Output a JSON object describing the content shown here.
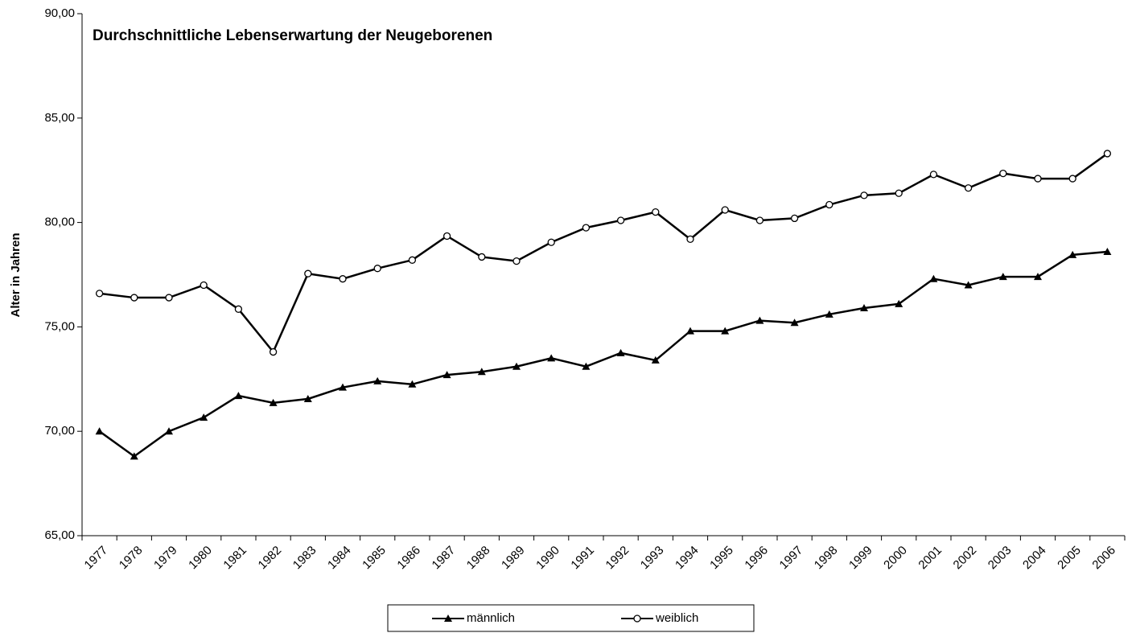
{
  "chart_data": {
    "type": "line",
    "title": "Durchschnittliche Lebenserwartung der Neugeborenen",
    "y_label": "Alter in Jahren",
    "categories": [
      "1977",
      "1978",
      "1979",
      "1980",
      "1981",
      "1982",
      "1983",
      "1984",
      "1985",
      "1986",
      "1987",
      "1988",
      "1989",
      "1990",
      "1991",
      "1992",
      "1993",
      "1994",
      "1995",
      "1996",
      "1997",
      "1998",
      "1999",
      "2000",
      "2001",
      "2002",
      "2003",
      "2004",
      "2005",
      "2006"
    ],
    "series": [
      {
        "name": "männlich",
        "color": "#000000",
        "marker": "triangle",
        "values": [
          70.0,
          68.8,
          70.0,
          70.66,
          71.7,
          71.36,
          71.55,
          72.1,
          72.4,
          72.25,
          72.7,
          72.85,
          73.1,
          73.5,
          73.1,
          73.75,
          73.4,
          74.8,
          74.8,
          75.3,
          75.2,
          75.6,
          75.9,
          76.1,
          77.3,
          77.0,
          77.4,
          77.4,
          78.45,
          78.6
        ]
      },
      {
        "name": "weiblich",
        "color": "#000000",
        "marker": "circle",
        "values": [
          76.6,
          76.4,
          76.4,
          77.0,
          75.85,
          73.8,
          77.55,
          77.3,
          77.8,
          78.2,
          79.35,
          78.35,
          78.15,
          79.05,
          79.75,
          80.1,
          80.5,
          79.2,
          80.6,
          80.1,
          80.2,
          80.85,
          81.3,
          81.4,
          82.3,
          81.65,
          82.35,
          82.1,
          82.1,
          83.3
        ]
      }
    ],
    "ylim": [
      65,
      90
    ],
    "yticks": [
      {
        "value": 65,
        "label": "65,00"
      },
      {
        "value": 70,
        "label": "70,00"
      },
      {
        "value": 75,
        "label": "75,00"
      },
      {
        "value": 80,
        "label": "80,00"
      },
      {
        "value": 85,
        "label": "85,00"
      },
      {
        "value": 90,
        "label": "90,00"
      }
    ],
    "grid": false,
    "legend": "bottom"
  }
}
